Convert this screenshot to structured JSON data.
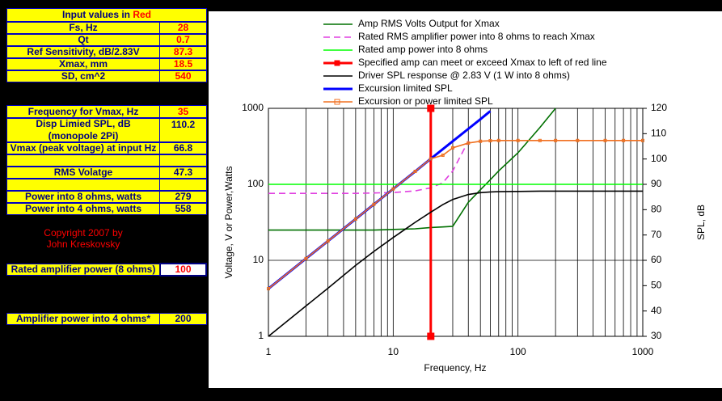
{
  "sheet": {
    "header": [
      "Input values in ",
      "Red"
    ],
    "rows": [
      {
        "label": "Fs, Hz",
        "value": 28
      },
      {
        "label": "Qt",
        "value": 0.7
      },
      {
        "label": "Ref Sensitivity, dB/2.83V",
        "value": 87.3
      },
      {
        "label": "Xmax, mm",
        "value": 18.5
      },
      {
        "label": "SD, cm^2",
        "value": 540
      }
    ],
    "results": [
      {
        "label": "Frequency for Vmax, Hz",
        "value": 35
      },
      {
        "label": "Vmax (peak voltage) at input Hz",
        "value": 66.8
      },
      {
        "label": "RMS Volatge",
        "value": 47.3
      },
      {
        "label": "Power into 8 ohms, watts",
        "value": 279
      },
      {
        "label": "Power into 4 ohms, watts",
        "value": 558
      }
    ],
    "disp_label": [
      "Disp Limied SPL, dB",
      "(monopole 2Pi)"
    ],
    "disp_value": 110.2,
    "copyright": [
      "Copyright 2007 by",
      "John Kreskovsky"
    ],
    "amp": [
      {
        "label": "Rated amplifier power (8 ohms)",
        "value": 100
      },
      {
        "label": "Amplifier power into 4 ohms*",
        "value": 200
      }
    ]
  },
  "chart_data": {
    "type": "line",
    "x_label": "Frequency, Hz",
    "y_label": "Voltage, V or Power,Watts",
    "y2_label": "SPL, dB",
    "x_log": true,
    "y_log": true,
    "grid": true,
    "x": [
      1,
      2,
      3,
      5,
      7,
      10,
      15,
      20,
      25,
      30,
      40,
      50,
      60,
      70,
      100,
      150,
      200,
      300,
      500,
      700,
      1000
    ],
    "xlim": [
      1,
      1000
    ],
    "xticks": [
      1,
      10,
      100,
      1000
    ],
    "xminor": [
      2,
      3,
      4,
      5,
      6,
      7,
      8,
      9,
      20,
      30,
      40,
      50,
      60,
      70,
      80,
      90,
      200,
      300,
      400,
      500,
      600,
      700,
      800,
      900
    ],
    "ylim": [
      1,
      1000
    ],
    "yticks": [
      1,
      10,
      100,
      1000
    ],
    "y2lim": [
      30,
      120
    ],
    "y2ticks": [
      30,
      40,
      50,
      60,
      70,
      80,
      90,
      100,
      110,
      120
    ],
    "series": [
      {
        "name": "Amp RMS Volts Output for Xmax",
        "color": "#007000",
        "values": [
          25,
          25,
          25,
          25,
          25,
          25.5,
          26,
          27,
          27.5,
          28,
          58,
          85,
          115,
          150,
          260,
          560,
          1000,
          null,
          null,
          null,
          null
        ]
      },
      {
        "name": "Rated RMS amplifier power into 8 ohms to reach Xmax",
        "color": "#e040e0",
        "line_style": "dashed",
        "values": [
          76,
          76,
          76,
          76,
          77,
          78,
          82,
          90,
          105,
          150,
          370,
          null,
          null,
          null,
          null,
          null,
          null,
          null,
          null,
          null,
          null
        ]
      },
      {
        "name": "Rated amp power into 8 ohms",
        "color": "#00ff00",
        "values": [
          100,
          100,
          100,
          100,
          100,
          100,
          100,
          100,
          100,
          100,
          100,
          100,
          100,
          100,
          100,
          100,
          100,
          100,
          100,
          100,
          100
        ]
      },
      {
        "name": "Specified amp can meet or exceed Xmax to left of red line",
        "color": "#ff0000",
        "marker": "square",
        "width": 3,
        "x": [
          20,
          20
        ],
        "values": [
          1,
          1000
        ]
      },
      {
        "name": "Driver SPL response @ 2.83 V (1 W into 8 ohms)",
        "color": "#000000",
        "axis": "y2",
        "values": [
          30,
          42,
          49,
          58,
          63.5,
          69,
          75,
          79,
          82,
          84,
          86,
          86.7,
          87,
          87.1,
          87.2,
          87.3,
          87.3,
          87.3,
          87.3,
          87.3,
          87.3
        ]
      },
      {
        "name": "Excursion limited SPL",
        "color": "#0000ff",
        "axis": "y2",
        "width": 3,
        "values": [
          48.8,
          60.7,
          67.6,
          76.3,
          82.1,
          88.2,
          95.1,
          100.1,
          103.9,
          107,
          111.9,
          115.7,
          118.9,
          null,
          null,
          null,
          null,
          null,
          null,
          null,
          null
        ]
      },
      {
        "name": "Excursion or power limited SPL",
        "color": "#f07020",
        "axis": "y2",
        "marker": "square",
        "values": [
          48.8,
          60.7,
          67.6,
          76.3,
          82.1,
          88.2,
          95.1,
          100.1,
          101.5,
          104.4,
          106.3,
          107,
          107.2,
          107.3,
          107.3,
          107.3,
          107.3,
          107.3,
          107.3,
          107.3,
          107.3
        ]
      }
    ]
  }
}
